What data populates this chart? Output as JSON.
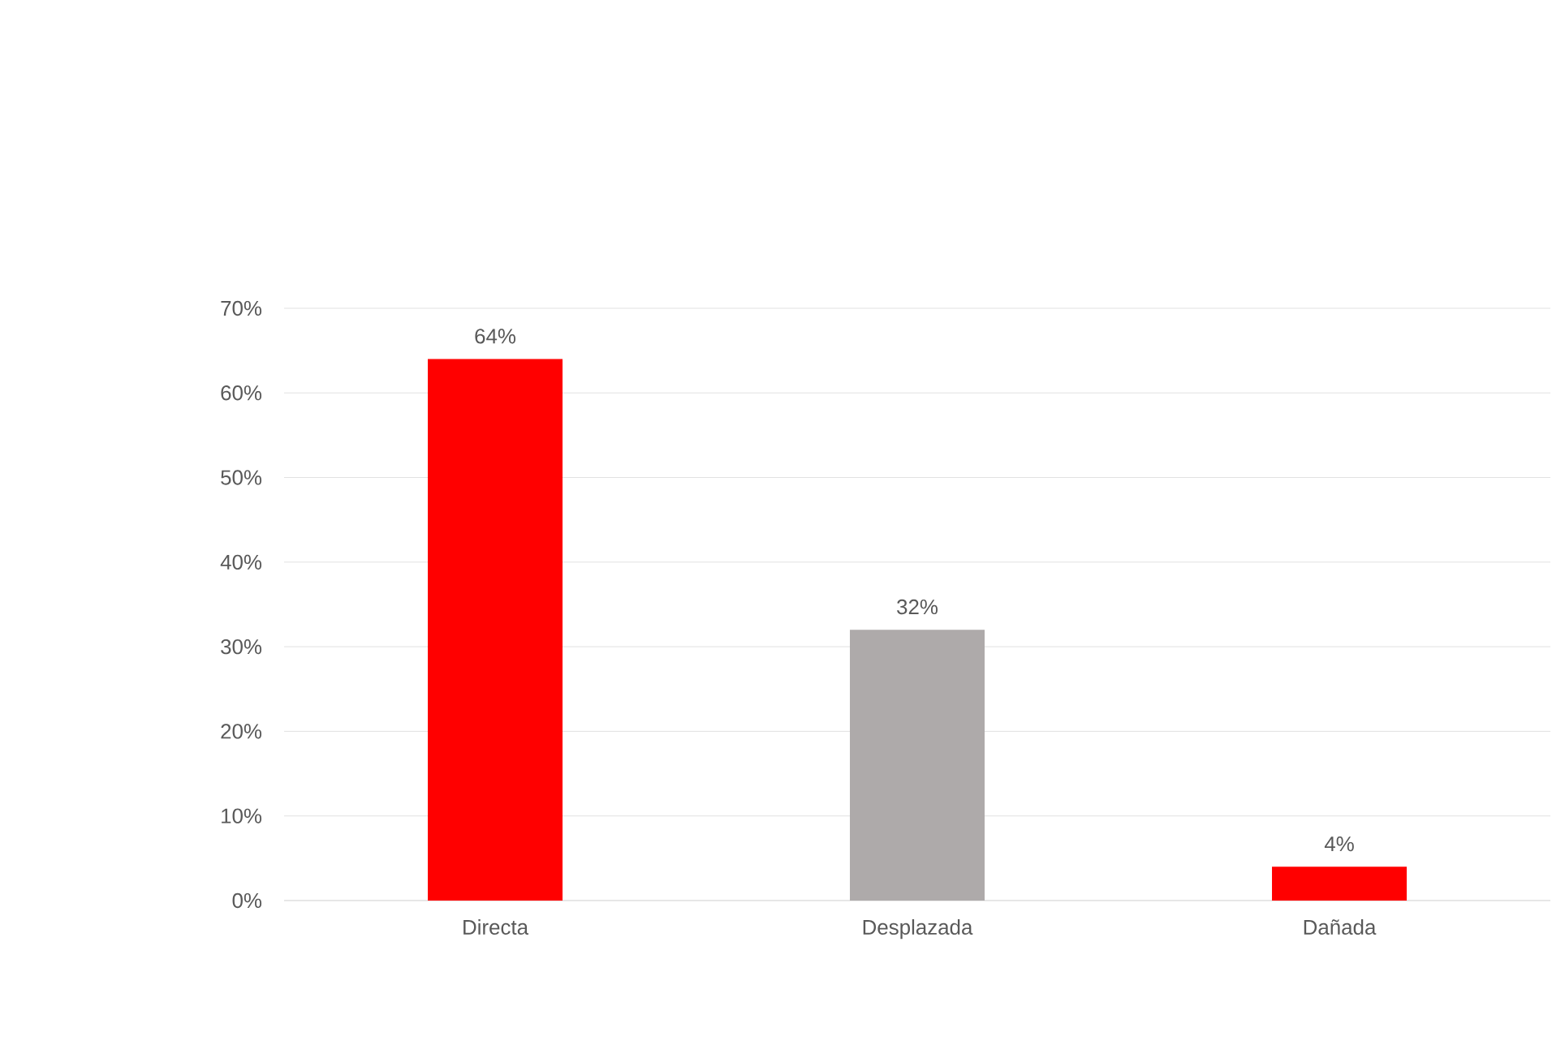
{
  "chart_data": {
    "type": "bar",
    "categories": [
      "Directa",
      "Desplazada",
      "Dañada"
    ],
    "values": [
      64,
      32,
      4
    ],
    "colors": [
      "#ff0000",
      "#aeaaaa",
      "#ff0000"
    ],
    "value_labels": [
      "64%",
      "32%",
      "4%"
    ],
    "ylim": [
      0,
      70
    ],
    "yticks": [
      {
        "value": 0,
        "label": "0%"
      },
      {
        "value": 10,
        "label": "10%"
      },
      {
        "value": 20,
        "label": "20%"
      },
      {
        "value": 30,
        "label": "30%"
      },
      {
        "value": 40,
        "label": "40%"
      },
      {
        "value": 50,
        "label": "50%"
      },
      {
        "value": 60,
        "label": "60%"
      },
      {
        "value": 70,
        "label": "70%"
      }
    ],
    "grid": "y"
  }
}
